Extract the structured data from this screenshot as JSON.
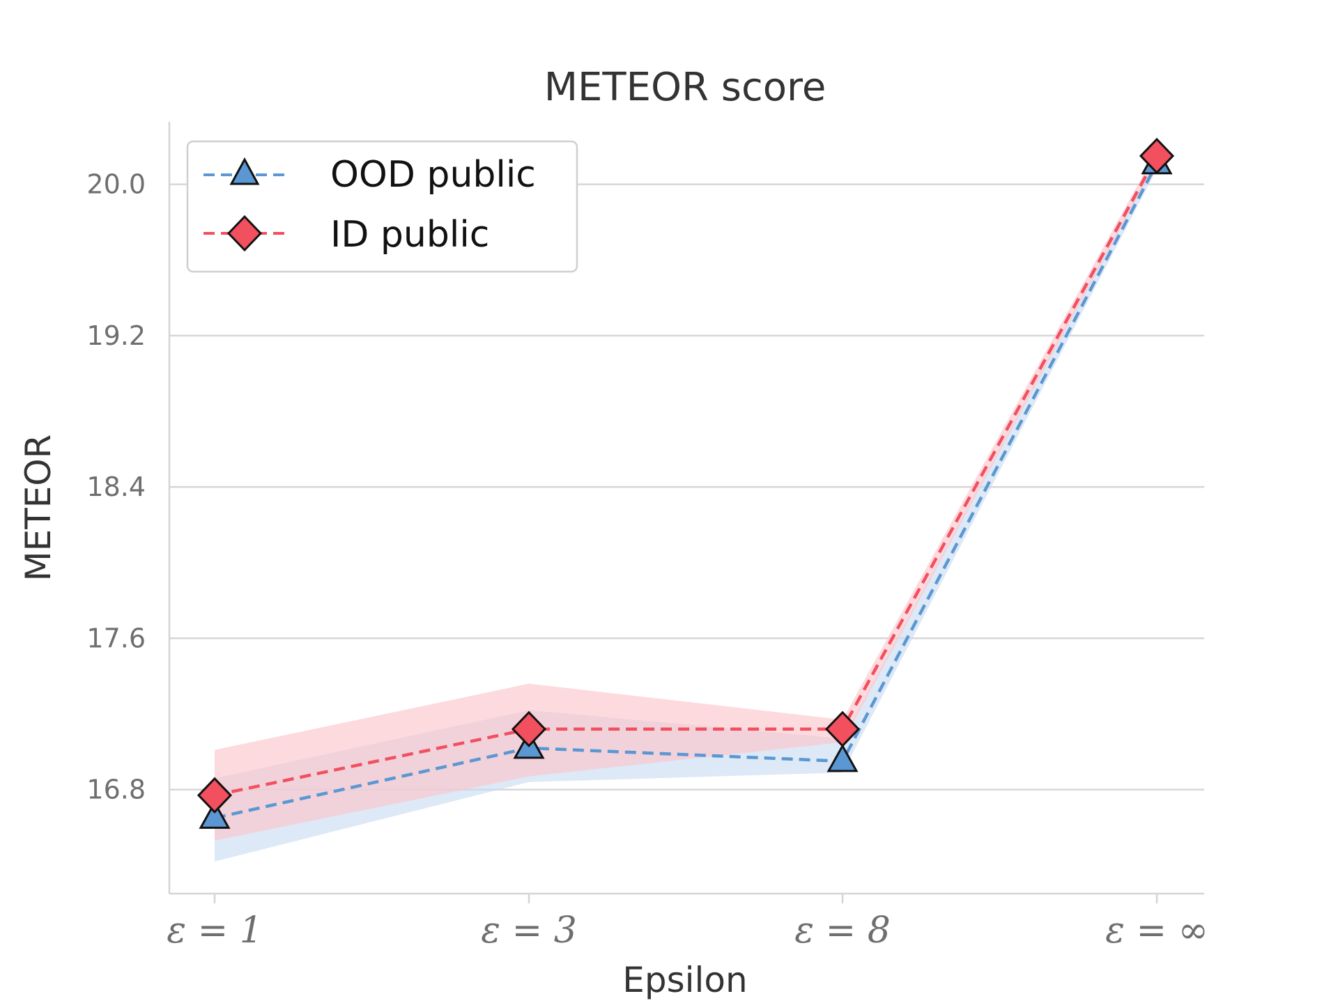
{
  "chart_data": {
    "type": "line",
    "title": "METEOR score",
    "xlabel": "Epsilon",
    "ylabel": "METEOR",
    "categories": [
      "ε = 1",
      "ε = 3",
      "ε = 8",
      "ε = ∞"
    ],
    "yticks": [
      "16.8",
      "17.6",
      "18.4",
      "19.2",
      "20.0"
    ],
    "ylim": [
      16.25,
      20.33
    ],
    "grid": "horizontal",
    "legend_position": "top-left",
    "series": [
      {
        "name": "OOD public",
        "marker": "triangle",
        "color": "#5b97d2",
        "band_color": "#c7daf0",
        "values": [
          16.65,
          17.02,
          16.95,
          20.11
        ],
        "lower": [
          16.42,
          16.84,
          16.89,
          20.08
        ],
        "upper": [
          16.86,
          17.22,
          17.07,
          20.14
        ]
      },
      {
        "name": "ID public",
        "marker": "diamond",
        "color": "#f24f5f",
        "band_color": "#fcc6cc",
        "values": [
          16.77,
          17.12,
          17.12,
          20.15
        ],
        "lower": [
          16.53,
          16.87,
          17.05,
          20.12
        ],
        "upper": [
          17.01,
          17.36,
          17.17,
          20.18
        ]
      }
    ]
  }
}
